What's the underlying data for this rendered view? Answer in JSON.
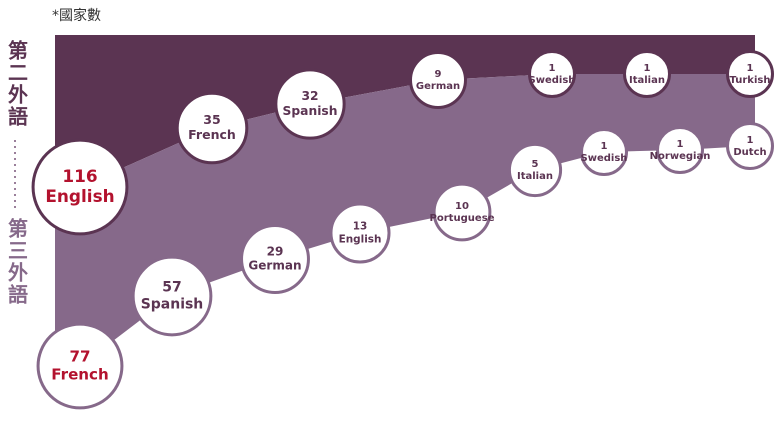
{
  "note": "*國家數",
  "chart_data": {
    "type": "bubble",
    "emphasis_color": "#b3122e",
    "series": [
      {
        "name": "第二外語",
        "color": "#5b3452",
        "text_color": "#5b3452",
        "categories": [
          "English",
          "French",
          "Spanish",
          "German",
          "Swedish",
          "Italian",
          "Turkish"
        ],
        "values": [
          116,
          35,
          32,
          9,
          1,
          1,
          1
        ]
      },
      {
        "name": "第三外語",
        "color": "#86698a",
        "text_color": "#5b3452",
        "categories": [
          "French",
          "Spanish",
          "German",
          "English",
          "Portuguese",
          "Italian",
          "Swedish",
          "Norwegian",
          "Dutch"
        ],
        "values": [
          77,
          57,
          29,
          13,
          10,
          5,
          1,
          1,
          1
        ]
      }
    ]
  }
}
